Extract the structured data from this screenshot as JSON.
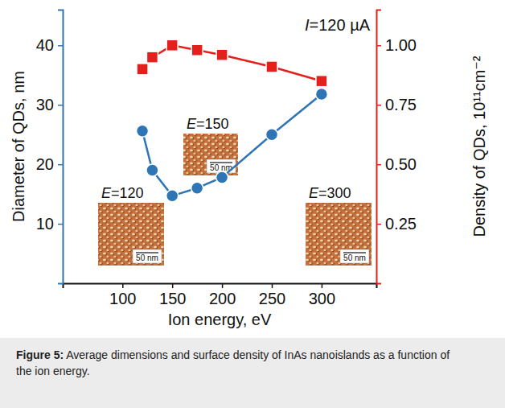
{
  "chart_data": {
    "type": "line",
    "x_label": "Ion energy, eV",
    "y_label": "Diameter of QDs, nm",
    "y2_label": "Density of QDs, 10¹¹cm⁻²",
    "x": [
      120,
      130,
      150,
      175,
      200,
      250,
      300
    ],
    "series": [
      {
        "name": "Diameter of QDs",
        "color": "#2e75b6",
        "marker": "circle",
        "line_style": "solid",
        "values": [
          25.6,
          19.0,
          14.7,
          16.0,
          17.8,
          25.0,
          31.8
        ]
      },
      {
        "name": "Density of QDs",
        "color": "#e3201b",
        "marker": "square",
        "line_style": "solid",
        "axis": "y2",
        "values": [
          0.9,
          0.95,
          1.0,
          0.98,
          0.96,
          0.91,
          0.85
        ]
      }
    ],
    "xlim": [
      40,
      355
    ],
    "xticks": [
      100,
      150,
      200,
      250,
      300
    ],
    "ylim": [
      0,
      46
    ],
    "yticks": [
      10,
      20,
      30,
      40
    ],
    "y2lim": [
      0,
      1.15
    ],
    "y2ticks": [
      {
        "value": 0.25,
        "label": "0.25"
      },
      {
        "value": 0.5,
        "label": "0.50"
      },
      {
        "value": 0.75,
        "label": "0.75"
      },
      {
        "value": 1.0,
        "label": "1.00"
      }
    ],
    "grid": false,
    "annotations": [
      {
        "text": "I=120 µA"
      }
    ],
    "insets": [
      {
        "label": "E=120",
        "scale_label": "50 nm"
      },
      {
        "label": "E=150",
        "scale_label": "50 nm"
      },
      {
        "label": "E=300",
        "scale_label": "50 nm"
      }
    ],
    "caption": "Figure 5: Average dimensions and surface density of InAs nanoislands as a function of the ion energy."
  }
}
